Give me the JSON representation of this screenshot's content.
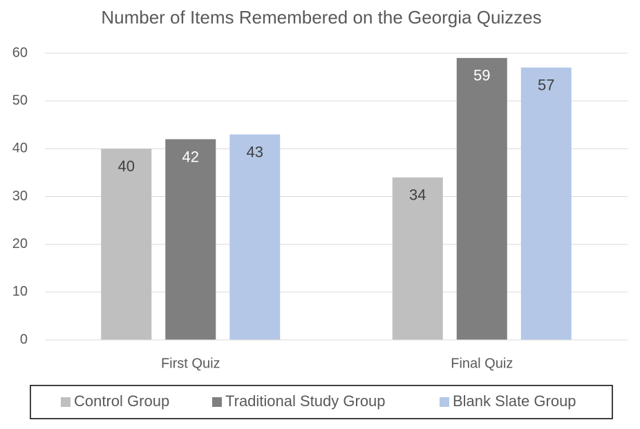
{
  "chart_data": {
    "type": "bar",
    "title": "Number of Items Remembered on the Georgia Quizzes",
    "categories": [
      "First Quiz",
      "Final Quiz"
    ],
    "series": [
      {
        "name": "Control Group",
        "color": "#bfbfbf",
        "label_color": "#404040",
        "values": [
          40,
          34
        ]
      },
      {
        "name": "Traditional Study Group",
        "color": "#7f7f7f",
        "label_color": "#ffffff",
        "values": [
          42,
          59
        ]
      },
      {
        "name": "Blank Slate Group",
        "color": "#b4c7e7",
        "label_color": "#404040",
        "values": [
          43,
          57
        ]
      }
    ],
    "ylim": [
      0,
      60
    ],
    "yticks": [
      0,
      10,
      20,
      30,
      40,
      50,
      60
    ],
    "grid": true,
    "legend": "bottom"
  }
}
